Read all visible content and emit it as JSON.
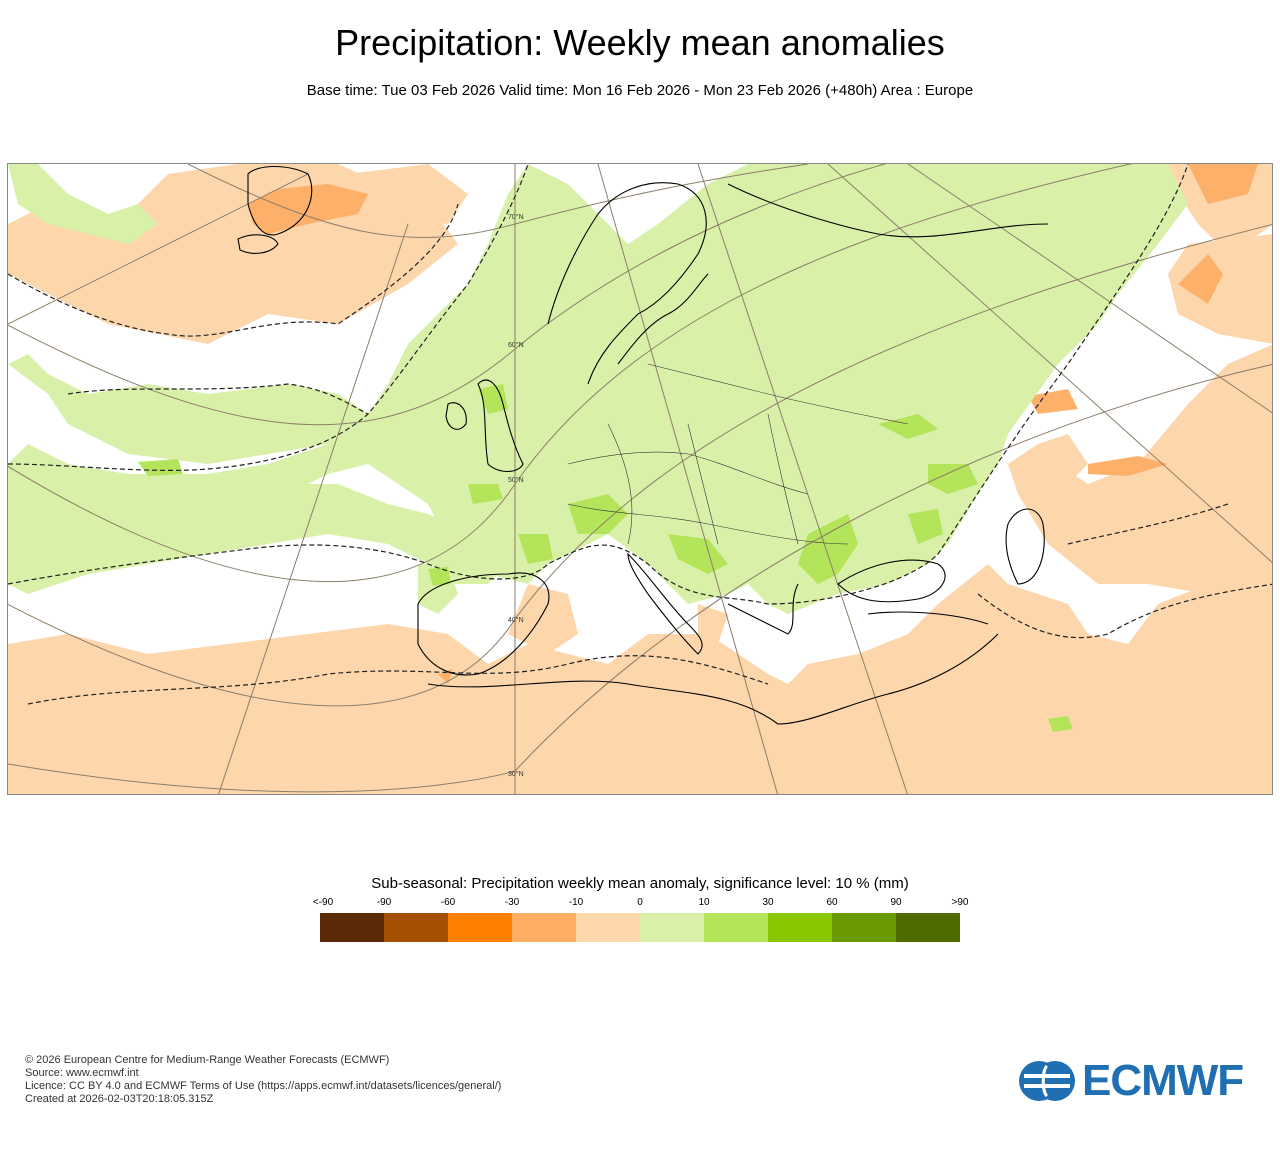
{
  "title": "Precipitation: Weekly mean anomalies",
  "subtitle": "Base time: Tue 03 Feb 2026 Valid time: Mon 16 Feb 2026 - Mon 23 Feb 2026 (+480h) Area : Europe",
  "map": {
    "lat_labels": [
      "70°N",
      "60°N",
      "50°N",
      "40°N",
      "30°N"
    ],
    "colors": {
      "strong_wet": "#b3e45a",
      "wet": "#d9f0a8",
      "dry": "#fdd6ac",
      "moderate_dry": "#fdb06a",
      "coast": "#000000",
      "graticule": "#8c7e6a"
    }
  },
  "legend": {
    "title": "Sub-seasonal: Precipitation weekly mean anomaly, significance level: 10 % (mm)",
    "ticks": [
      "<-90",
      "-90",
      "-60",
      "-30",
      "-10",
      "0",
      "10",
      "30",
      "60",
      "90",
      ">90"
    ],
    "colors": [
      "#5a2a06",
      "#a65004",
      "#ff7f00",
      "#fdae61",
      "#fdd6ac",
      "#d9f0a8",
      "#b3e45a",
      "#8ac600",
      "#6a9a00",
      "#4d6b00"
    ]
  },
  "footer": {
    "copyright": "© 2026 European Centre for Medium-Range Weather Forecasts (ECMWF)",
    "source": "Source: www.ecmwf.int",
    "licence": "Licence: CC BY 4.0 and ECMWF Terms of Use (https://apps.ecmwf.int/datasets/licences/general/)",
    "created": "Created at 2026-02-03T20:18:05.315Z"
  },
  "logo": {
    "text": "ECMWF",
    "icon": "ecmwf-logo-icon"
  }
}
